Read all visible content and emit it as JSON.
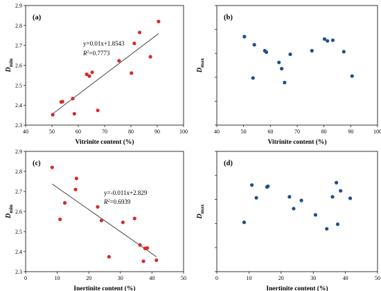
{
  "chart_data": [
    {
      "type": "scatter",
      "panel_label": "(a)",
      "xlabel": "Vitrinite content (%)",
      "ylabel_main": "D",
      "ylabel_sub": "min",
      "xlim": [
        40,
        100
      ],
      "ylim": [
        2.3,
        2.9
      ],
      "xticks": [
        "40",
        "50",
        "60",
        "70",
        "80",
        "90",
        "100"
      ],
      "yticks": [
        "2.3",
        "2.4",
        "2.5",
        "2.6",
        "2.7",
        "2.8",
        "2.9"
      ],
      "marker_color": "#d42a2a",
      "points": [
        {
          "x": 50.3,
          "y": 2.352
        },
        {
          "x": 53.5,
          "y": 2.416
        },
        {
          "x": 54.0,
          "y": 2.418
        },
        {
          "x": 57.9,
          "y": 2.433
        },
        {
          "x": 58.5,
          "y": 2.357
        },
        {
          "x": 63.2,
          "y": 2.555
        },
        {
          "x": 64.2,
          "y": 2.546
        },
        {
          "x": 65.3,
          "y": 2.565
        },
        {
          "x": 67.4,
          "y": 2.374
        },
        {
          "x": 75.5,
          "y": 2.623
        },
        {
          "x": 80.2,
          "y": 2.561
        },
        {
          "x": 81.3,
          "y": 2.71
        },
        {
          "x": 83.3,
          "y": 2.765
        },
        {
          "x": 87.4,
          "y": 2.643
        },
        {
          "x": 90.5,
          "y": 2.82
        }
      ],
      "trendline": {
        "x": [
          50.3,
          90.5
        ],
        "y": [
          2.357,
          2.759
        ]
      },
      "equation": "y=0.01x+1.8543",
      "r2_prefix": "R",
      "r2_value": "=0.7773"
    },
    {
      "type": "scatter",
      "panel_label": "(b)",
      "xlabel": "Vitrinite content (%)",
      "ylabel_main": "D",
      "ylabel_sub": "max",
      "xlim": [
        40,
        100
      ],
      "ylim": [
        0.0,
        0.5
      ],
      "xticks": [
        "40",
        "50",
        "60",
        "70",
        "80",
        "90",
        "100"
      ],
      "yticks": [
        "",
        "",
        "",
        "",
        "",
        ""
      ],
      "marker_color": "#1f4f8a",
      "points": [
        {
          "x": 50.3,
          "y": 0.37
        },
        {
          "x": 53.5,
          "y": 0.197
        },
        {
          "x": 54.0,
          "y": 0.336
        },
        {
          "x": 57.9,
          "y": 0.311
        },
        {
          "x": 58.5,
          "y": 0.305
        },
        {
          "x": 63.2,
          "y": 0.262
        },
        {
          "x": 64.2,
          "y": 0.236
        },
        {
          "x": 65.3,
          "y": 0.178
        },
        {
          "x": 67.4,
          "y": 0.296
        },
        {
          "x": 75.5,
          "y": 0.311
        },
        {
          "x": 80.2,
          "y": 0.36
        },
        {
          "x": 81.3,
          "y": 0.352
        },
        {
          "x": 83.3,
          "y": 0.355
        },
        {
          "x": 87.4,
          "y": 0.307
        },
        {
          "x": 90.5,
          "y": 0.205
        }
      ]
    },
    {
      "type": "scatter",
      "panel_label": "(c)",
      "xlabel": "Inertinite content (%)",
      "ylabel_main": "D",
      "ylabel_sub": "min",
      "xlim": [
        0,
        50
      ],
      "ylim": [
        2.3,
        2.9
      ],
      "xticks": [
        "0",
        "10",
        "20",
        "30",
        "40",
        "50"
      ],
      "yticks": [
        "2.3",
        "2.4",
        "2.5",
        "2.6",
        "2.7",
        "2.8",
        "2.9"
      ],
      "marker_color": "#d42a2a",
      "points": [
        {
          "x": 8.4,
          "y": 2.82
        },
        {
          "x": 10.9,
          "y": 2.561
        },
        {
          "x": 12.4,
          "y": 2.643
        },
        {
          "x": 15.8,
          "y": 2.71
        },
        {
          "x": 16.1,
          "y": 2.765
        },
        {
          "x": 22.8,
          "y": 2.623
        },
        {
          "x": 24.0,
          "y": 2.555
        },
        {
          "x": 26.4,
          "y": 2.374
        },
        {
          "x": 30.8,
          "y": 2.546
        },
        {
          "x": 34.5,
          "y": 2.565
        },
        {
          "x": 36.2,
          "y": 2.433
        },
        {
          "x": 37.3,
          "y": 2.352
        },
        {
          "x": 37.8,
          "y": 2.416
        },
        {
          "x": 38.5,
          "y": 2.418
        },
        {
          "x": 41.4,
          "y": 2.357
        }
      ],
      "trendline": {
        "x": [
          8.4,
          41.4
        ],
        "y": [
          2.737,
          2.374
        ]
      },
      "equation": "y=-0.011x+2.829",
      "r2_prefix": "R",
      "r2_value": "=0.6939"
    },
    {
      "type": "scatter",
      "panel_label": "(d)",
      "xlabel": "Inertinite content (%)",
      "ylabel_main": "D",
      "ylabel_sub": "max",
      "xlim": [
        0,
        50
      ],
      "ylim": [
        0.0,
        0.5
      ],
      "xticks": [
        "0",
        "10",
        "20",
        "30",
        "40",
        "50"
      ],
      "yticks": [
        "",
        "",
        "",
        "",
        "",
        ""
      ],
      "marker_color": "#1f4f8a",
      "points": [
        {
          "x": 8.5,
          "y": 0.205
        },
        {
          "x": 10.9,
          "y": 0.36
        },
        {
          "x": 12.3,
          "y": 0.307
        },
        {
          "x": 15.6,
          "y": 0.352
        },
        {
          "x": 15.9,
          "y": 0.355
        },
        {
          "x": 22.6,
          "y": 0.311
        },
        {
          "x": 23.9,
          "y": 0.262
        },
        {
          "x": 26.3,
          "y": 0.296
        },
        {
          "x": 30.7,
          "y": 0.236
        },
        {
          "x": 34.2,
          "y": 0.178
        },
        {
          "x": 36.0,
          "y": 0.311
        },
        {
          "x": 37.2,
          "y": 0.37
        },
        {
          "x": 37.6,
          "y": 0.197
        },
        {
          "x": 38.5,
          "y": 0.336
        },
        {
          "x": 41.5,
          "y": 0.305
        }
      ]
    }
  ]
}
